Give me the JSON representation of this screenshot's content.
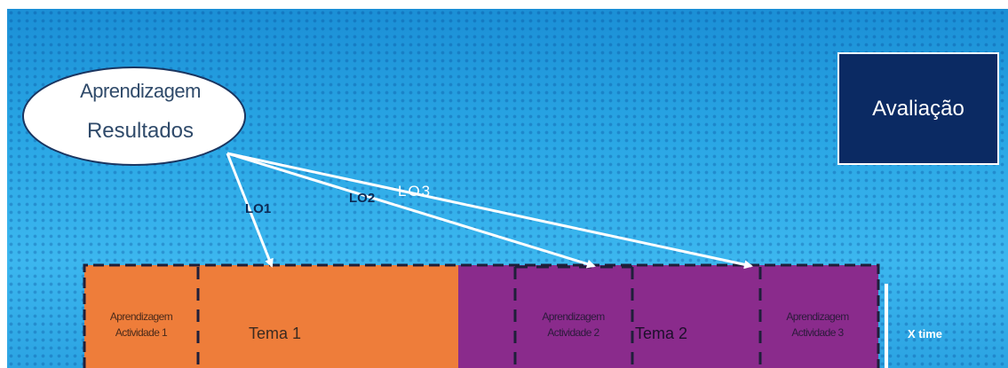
{
  "learning_outcomes": {
    "line1": "Aprendizagem",
    "line2": "Resultados"
  },
  "evaluation": {
    "label": "Avaliação"
  },
  "links": [
    "LO1",
    "LO2",
    "LO3"
  ],
  "timeline": {
    "themes": [
      "Tema 1",
      "Tema 2"
    ],
    "activities": [
      {
        "line1": "Aprendizagem",
        "line2": "Actividade 1"
      },
      {
        "line1": "Aprendizagem",
        "line2": "Actividade 2"
      },
      {
        "line1": "Aprendizagem",
        "line2": "Actividade 3"
      }
    ],
    "time_label": "X time"
  },
  "colors": {
    "background": "#2ba3e2",
    "theme1": "#ee7d3a",
    "theme2": "#8a2b8c",
    "evaluation_box": "#0b2a63",
    "arrow": "#ffffff",
    "ellipse": "#ffffff"
  }
}
